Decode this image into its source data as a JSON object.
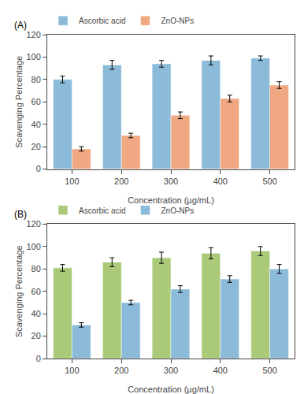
{
  "chart_data": [
    {
      "type": "bar",
      "title": "(A)",
      "categories": [
        "100",
        "200",
        "300",
        "400",
        "500"
      ],
      "series": [
        {
          "name": "Ascorbic acid",
          "color": "#8BBBD9",
          "values": [
            80,
            93,
            94,
            97,
            99
          ],
          "errors": [
            3,
            4,
            3,
            4,
            2
          ]
        },
        {
          "name": "ZnO-NPs",
          "color": "#EFA882",
          "values": [
            18,
            30,
            48,
            63,
            75
          ],
          "errors": [
            2,
            2,
            3,
            3,
            3
          ]
        }
      ],
      "xlabel": "Concentration (µg/mL)",
      "ylabel": "Scavenging Percentage",
      "ylim": [
        0,
        120
      ],
      "yticks": [
        0,
        20,
        40,
        60,
        80,
        100,
        120
      ],
      "grid": false,
      "legend": "upper left"
    },
    {
      "type": "bar",
      "title": "(B)",
      "categories": [
        "100",
        "200",
        "300",
        "400",
        "500"
      ],
      "series": [
        {
          "name": "Ascorbic acid",
          "color": "#AACA7A",
          "values": [
            81,
            86,
            90,
            94,
            96
          ],
          "errors": [
            3,
            4,
            5,
            5,
            4
          ]
        },
        {
          "name": "ZnO-NPs",
          "color": "#8BBBD9",
          "values": [
            30,
            50,
            62,
            71,
            80
          ],
          "errors": [
            2,
            2,
            3,
            3,
            4
          ]
        }
      ],
      "xlabel": "Concentration (µg/mL)",
      "ylabel": "Scavenging Percentage",
      "ylim": [
        0,
        120
      ],
      "yticks": [
        0,
        20,
        40,
        60,
        80,
        100,
        120
      ],
      "grid": false,
      "legend": "upper left"
    }
  ]
}
